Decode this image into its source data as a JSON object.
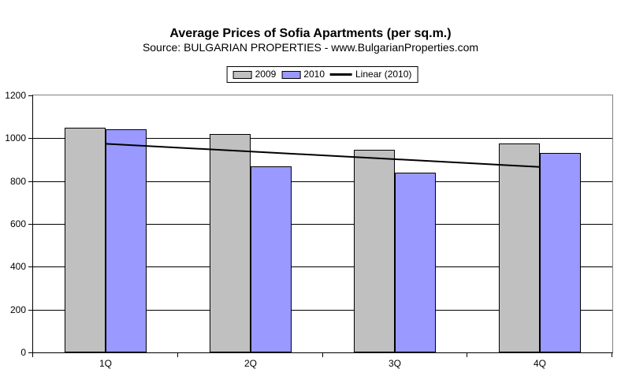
{
  "header": {
    "title": "Average Prices of Sofia Apartments (per sq.m.)",
    "subtitle": "Source: BULGARIAN PROPERTIES - www.BulgarianProperties.com"
  },
  "legend": {
    "position": "top-center",
    "items": [
      {
        "label": "2009",
        "swatch": "box",
        "color": "#C0C0C0"
      },
      {
        "label": "2010",
        "swatch": "box",
        "color": "#9999FF"
      },
      {
        "label": "Linear (2010)",
        "swatch": "line",
        "color": "#000000"
      }
    ]
  },
  "chart_data": {
    "type": "bar",
    "title": "Average Prices of Sofia Apartments (per sq.m.)",
    "subtitle": "Source: BULGARIAN PROPERTIES - www.BulgarianProperties.com",
    "categories": [
      "1Q",
      "2Q",
      "3Q",
      "4Q"
    ],
    "series": [
      {
        "name": "2009",
        "color": "#C0C0C0",
        "values": [
          1050,
          1020,
          945,
          975
        ]
      },
      {
        "name": "2010",
        "color": "#9999FF",
        "values": [
          1040,
          870,
          840,
          930
        ]
      }
    ],
    "trendline": {
      "name": "Linear (2010)",
      "of_series": "2010",
      "color": "#000000",
      "endpoint_values": [
        974,
        866
      ]
    },
    "xlabel": "",
    "ylabel": "",
    "ylim": [
      0,
      1200
    ],
    "yticks": [
      0,
      200,
      400,
      600,
      800,
      1000,
      1200
    ],
    "grid": true,
    "legend_position": "top",
    "colors": {
      "plot_background": "#FFFFFF",
      "gridline": "#000000",
      "axis": "#000000",
      "plot_border": "#808080",
      "text": "#000000"
    }
  }
}
